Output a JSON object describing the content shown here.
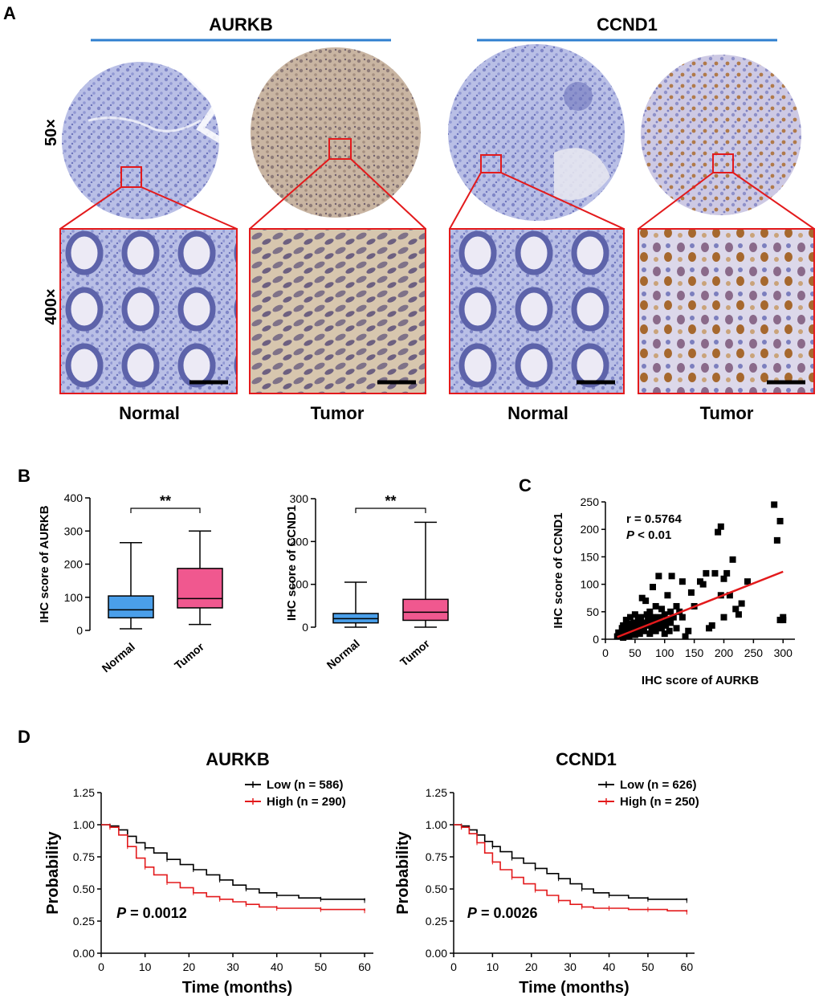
{
  "panel_a": {
    "letter": "A",
    "groups": [
      {
        "gene": "AURKB",
        "line_color": "#2f7fcf"
      },
      {
        "gene": "CCND1",
        "line_color": "#2f7fcf"
      }
    ],
    "row_labels": [
      "50×",
      "400×"
    ],
    "column_labels": [
      "Normal",
      "Tumor",
      "Normal",
      "Tumor"
    ],
    "images": [
      {
        "gene": "AURKB",
        "label": "Normal",
        "stain": "blue"
      },
      {
        "gene": "AURKB",
        "label": "Tumor",
        "stain": "brown"
      },
      {
        "gene": "CCND1",
        "label": "Normal",
        "stain": "blue"
      },
      {
        "gene": "CCND1",
        "label": "Tumor",
        "stain": "mixed"
      }
    ],
    "highlight_color": "#e31a1c"
  },
  "panel_b": {
    "letter": "B",
    "plots": [
      {
        "ylabel": "IHC score of AURKB",
        "yticks": [
          0,
          100,
          200,
          300,
          400
        ],
        "ylim": [
          0,
          400
        ],
        "significance": "**",
        "categories": [
          "Normal",
          "Tumor"
        ],
        "boxes": [
          {
            "name": "Normal",
            "min": 5,
            "q1": 38,
            "median": 62,
            "q3": 104,
            "max": 265,
            "color": "#4a9fea"
          },
          {
            "name": "Tumor",
            "min": 18,
            "q1": 68,
            "median": 96,
            "q3": 187,
            "max": 300,
            "color": "#f0588f"
          }
        ]
      },
      {
        "ylabel": "IHC score of CCND1",
        "yticks": [
          0,
          100,
          200,
          300
        ],
        "ylim": [
          0,
          300
        ],
        "significance": "**",
        "categories": [
          "Normal",
          "Tumor"
        ],
        "boxes": [
          {
            "name": "Normal",
            "min": 0,
            "q1": 10,
            "median": 20,
            "q3": 32,
            "max": 105,
            "color": "#4a9fea"
          },
          {
            "name": "Tumor",
            "min": 0,
            "q1": 16,
            "median": 35,
            "q3": 65,
            "max": 245,
            "color": "#f0588f"
          }
        ]
      }
    ]
  },
  "panel_c": {
    "letter": "C",
    "xlabel": "IHC score of AURKB",
    "ylabel": "IHC score of CCND1",
    "annotation_r": "r = 0.5764",
    "annotation_p_symbol": "P",
    "annotation_p_value": " < 0.01",
    "xticks": [
      0,
      50,
      100,
      150,
      200,
      250,
      300
    ],
    "yticks": [
      0,
      50,
      100,
      150,
      200,
      250
    ],
    "xlim": [
      0,
      320
    ],
    "ylim": [
      0,
      250
    ],
    "fit_line": {
      "x": [
        20,
        300
      ],
      "y": [
        4,
        123
      ],
      "color": "#e31a1c"
    }
  },
  "panel_d": {
    "letter": "D",
    "plots": [
      {
        "title": "AURKB",
        "ylabel": "Probability",
        "xlabel": "Time (months)",
        "xticks": [
          0,
          10,
          20,
          30,
          40,
          50,
          60
        ],
        "yticks": [
          "0.00",
          "0.25",
          "0.50",
          "0.75",
          "1.00",
          "1.25"
        ],
        "xlim": [
          0,
          62
        ],
        "ylim": [
          0,
          1.25
        ],
        "p_symbol": "P",
        "p_value": " = 0.0012",
        "series": [
          {
            "name": "Low (n = 586)",
            "color": "#000000",
            "x": [
              0,
              2,
              4,
              6,
              8,
              10,
              12,
              15,
              18,
              21,
              24,
              27,
              30,
              33,
              36,
              40,
              45,
              50,
              55,
              60
            ],
            "y": [
              1.0,
              0.99,
              0.96,
              0.91,
              0.86,
              0.82,
              0.78,
              0.73,
              0.69,
              0.65,
              0.61,
              0.57,
              0.53,
              0.5,
              0.47,
              0.45,
              0.43,
              0.42,
              0.42,
              0.41
            ]
          },
          {
            "name": "High (n = 290)",
            "color": "#e31a1c",
            "x": [
              0,
              2,
              4,
              6,
              8,
              10,
              12,
              15,
              18,
              21,
              24,
              27,
              30,
              33,
              36,
              40,
              45,
              50,
              55,
              60
            ],
            "y": [
              1.0,
              0.98,
              0.92,
              0.83,
              0.74,
              0.67,
              0.61,
              0.55,
              0.51,
              0.47,
              0.44,
              0.42,
              0.4,
              0.38,
              0.36,
              0.35,
              0.35,
              0.34,
              0.34,
              0.33
            ]
          }
        ]
      },
      {
        "title": "CCND1",
        "ylabel": "Probability",
        "xlabel": "Time (months)",
        "xticks": [
          0,
          10,
          20,
          30,
          40,
          50,
          60
        ],
        "yticks": [
          "0.00",
          "0.25",
          "0.50",
          "0.75",
          "1.00",
          "1.25"
        ],
        "xlim": [
          0,
          62
        ],
        "ylim": [
          0,
          1.25
        ],
        "p_symbol": "P",
        "p_value": " = 0.0026",
        "series": [
          {
            "name": "Low (n = 626)",
            "color": "#000000",
            "x": [
              0,
              2,
              4,
              6,
              8,
              10,
              12,
              15,
              18,
              21,
              24,
              27,
              30,
              33,
              36,
              40,
              45,
              50,
              55,
              60
            ],
            "y": [
              1.0,
              0.99,
              0.96,
              0.92,
              0.87,
              0.83,
              0.79,
              0.74,
              0.7,
              0.66,
              0.62,
              0.58,
              0.54,
              0.5,
              0.47,
              0.45,
              0.43,
              0.42,
              0.42,
              0.41
            ]
          },
          {
            "name": "High (n = 250)",
            "color": "#e31a1c",
            "x": [
              0,
              2,
              4,
              6,
              8,
              10,
              12,
              15,
              18,
              21,
              24,
              27,
              30,
              33,
              36,
              40,
              45,
              50,
              55,
              60
            ],
            "y": [
              1.0,
              0.98,
              0.93,
              0.86,
              0.78,
              0.71,
              0.65,
              0.59,
              0.54,
              0.49,
              0.45,
              0.41,
              0.38,
              0.36,
              0.35,
              0.35,
              0.34,
              0.34,
              0.33,
              0.32
            ]
          }
        ]
      }
    ]
  },
  "chart_data": [
    {
      "type": "box",
      "panel": "B-left",
      "categories": [
        "Normal",
        "Tumor"
      ],
      "ylabel": "IHC score of AURKB",
      "ylim": [
        0,
        400
      ],
      "series": [
        {
          "name": "Normal",
          "min": 5,
          "q1": 38,
          "median": 62,
          "q3": 104,
          "max": 265
        },
        {
          "name": "Tumor",
          "min": 18,
          "q1": 68,
          "median": 96,
          "q3": 187,
          "max": 300
        }
      ],
      "annotations": [
        "**"
      ]
    },
    {
      "type": "box",
      "panel": "B-right",
      "categories": [
        "Normal",
        "Tumor"
      ],
      "ylabel": "IHC score of CCND1",
      "ylim": [
        0,
        300
      ],
      "series": [
        {
          "name": "Normal",
          "min": 0,
          "q1": 10,
          "median": 20,
          "q3": 32,
          "max": 105
        },
        {
          "name": "Tumor",
          "min": 0,
          "q1": 16,
          "median": 35,
          "q3": 65,
          "max": 245
        }
      ],
      "annotations": [
        "**"
      ]
    },
    {
      "type": "scatter",
      "panel": "C",
      "xlabel": "IHC score of AURKB",
      "ylabel": "IHC score of CCND1",
      "xlim": [
        0,
        320
      ],
      "ylim": [
        0,
        250
      ],
      "points": {
        "x": [
          20,
          22,
          25,
          28,
          30,
          30,
          32,
          35,
          35,
          38,
          40,
          40,
          42,
          45,
          45,
          48,
          50,
          50,
          52,
          55,
          55,
          58,
          60,
          60,
          62,
          65,
          65,
          68,
          70,
          70,
          72,
          75,
          75,
          78,
          80,
          80,
          82,
          85,
          85,
          88,
          90,
          90,
          92,
          95,
          95,
          98,
          100,
          100,
          102,
          105,
          105,
          108,
          110,
          110,
          112,
          115,
          120,
          120,
          125,
          130,
          130,
          135,
          140,
          145,
          150,
          160,
          165,
          170,
          175,
          180,
          185,
          190,
          195,
          195,
          200,
          200,
          205,
          210,
          215,
          220,
          225,
          230,
          240,
          285,
          290,
          295,
          295,
          300,
          300
        ],
        "y": [
          5,
          12,
          8,
          20,
          3,
          25,
          15,
          10,
          35,
          18,
          5,
          28,
          40,
          22,
          12,
          30,
          8,
          45,
          18,
          35,
          25,
          10,
          40,
          20,
          75,
          30,
          15,
          70,
          25,
          45,
          35,
          10,
          50,
          20,
          40,
          95,
          30,
          15,
          60,
          25,
          115,
          40,
          35,
          20,
          55,
          30,
          10,
          45,
          25,
          80,
          35,
          15,
          50,
          30,
          115,
          40,
          20,
          60,
          50,
          40,
          105,
          5,
          15,
          85,
          60,
          105,
          100,
          120,
          20,
          25,
          120,
          195,
          80,
          205,
          110,
          40,
          120,
          80,
          145,
          55,
          45,
          65,
          105,
          245,
          180,
          35,
          215,
          35,
          40
        ]
      },
      "fit": {
        "x": [
          20,
          300
        ],
        "y": [
          4,
          123
        ]
      },
      "annotations": [
        "r = 0.5764",
        "P < 0.01"
      ]
    },
    {
      "type": "line",
      "panel": "D-left",
      "title": "AURKB",
      "xlabel": "Time (months)",
      "ylabel": "Probability",
      "series": [
        {
          "name": "Low (n = 586)",
          "x": [
            0,
            2,
            4,
            6,
            8,
            10,
            12,
            15,
            18,
            21,
            24,
            27,
            30,
            33,
            36,
            40,
            45,
            50,
            55,
            60
          ],
          "y": [
            1.0,
            0.99,
            0.96,
            0.91,
            0.86,
            0.82,
            0.78,
            0.73,
            0.69,
            0.65,
            0.61,
            0.57,
            0.53,
            0.5,
            0.47,
            0.45,
            0.43,
            0.42,
            0.42,
            0.41
          ]
        },
        {
          "name": "High (n = 290)",
          "x": [
            0,
            2,
            4,
            6,
            8,
            10,
            12,
            15,
            18,
            21,
            24,
            27,
            30,
            33,
            36,
            40,
            45,
            50,
            55,
            60
          ],
          "y": [
            1.0,
            0.98,
            0.92,
            0.83,
            0.74,
            0.67,
            0.61,
            0.55,
            0.51,
            0.47,
            0.44,
            0.42,
            0.4,
            0.38,
            0.36,
            0.35,
            0.35,
            0.34,
            0.34,
            0.33
          ]
        }
      ],
      "annotations": [
        "P = 0.0012"
      ]
    },
    {
      "type": "line",
      "panel": "D-right",
      "title": "CCND1",
      "xlabel": "Time (months)",
      "ylabel": "Probability",
      "series": [
        {
          "name": "Low (n = 626)",
          "x": [
            0,
            2,
            4,
            6,
            8,
            10,
            12,
            15,
            18,
            21,
            24,
            27,
            30,
            33,
            36,
            40,
            45,
            50,
            55,
            60
          ],
          "y": [
            1.0,
            0.99,
            0.96,
            0.92,
            0.87,
            0.83,
            0.79,
            0.74,
            0.7,
            0.66,
            0.62,
            0.58,
            0.54,
            0.5,
            0.47,
            0.45,
            0.43,
            0.42,
            0.42,
            0.41
          ]
        },
        {
          "name": "High (n = 250)",
          "x": [
            0,
            2,
            4,
            6,
            8,
            10,
            12,
            15,
            18,
            21,
            24,
            27,
            30,
            33,
            36,
            40,
            45,
            50,
            55,
            60
          ],
          "y": [
            1.0,
            0.98,
            0.93,
            0.86,
            0.78,
            0.71,
            0.65,
            0.59,
            0.54,
            0.49,
            0.45,
            0.41,
            0.38,
            0.36,
            0.35,
            0.35,
            0.34,
            0.34,
            0.33,
            0.32
          ]
        }
      ],
      "annotations": [
        "P = 0.0026"
      ]
    }
  ]
}
